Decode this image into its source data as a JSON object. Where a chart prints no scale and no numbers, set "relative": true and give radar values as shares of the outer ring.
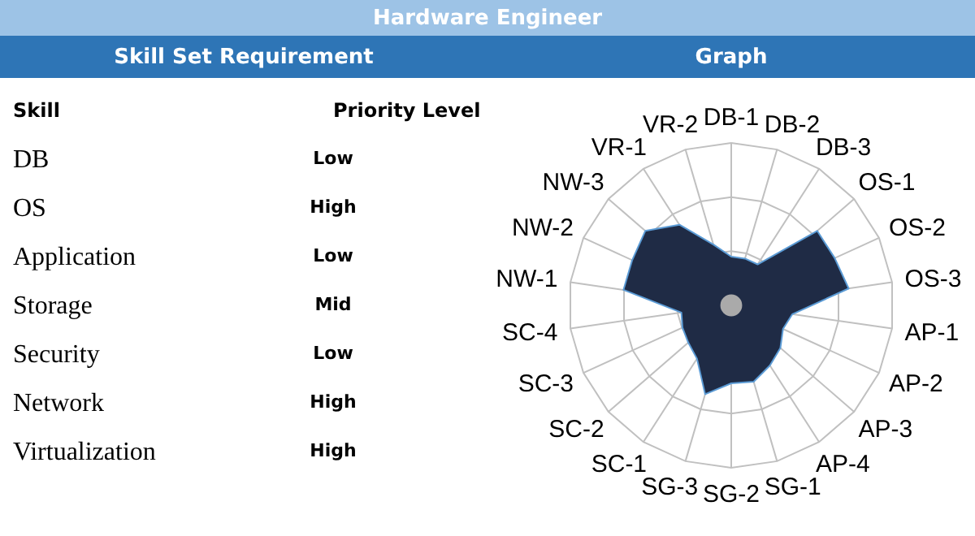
{
  "chart_data": [
    {
      "type": "other",
      "title": "Hardware Engineer",
      "subtitle": "Skill Set Requirement",
      "annotations": [
        "Skill",
        "Priority Level",
        "DB",
        "Low",
        "OS",
        "High",
        "Application",
        "Low",
        "Storage",
        "Mid",
        "Security",
        "Low",
        "Network",
        "High",
        "Virtualization",
        "High"
      ]
    },
    {
      "type": "radar",
      "title": "Graph",
      "relative": true,
      "grid": true,
      "categories": [
        "DB-1",
        "DB-2",
        "DB-3",
        "OS-1",
        "OS-2",
        "OS-3",
        "AP-1",
        "AP-2",
        "AP-3",
        "AP-4",
        "SG-1",
        "SG-2",
        "SG-3",
        "SC-1",
        "SC-2",
        "SC-3",
        "SC-4",
        "NW-1",
        "NW-2",
        "NW-3",
        "VR-1",
        "VR-2"
      ],
      "series": [
        {
          "color": "#1f2b45",
          "values": [
            0.3,
            0.3,
            0.3,
            0.7,
            0.7,
            0.73,
            0.38,
            0.35,
            0.4,
            0.44,
            0.49,
            0.48,
            0.57,
            0.39,
            0.35,
            0.33,
            0.31,
            0.67,
            0.67,
            0.7,
            0.59,
            0.39
          ]
        }
      ]
    }
  ]
}
